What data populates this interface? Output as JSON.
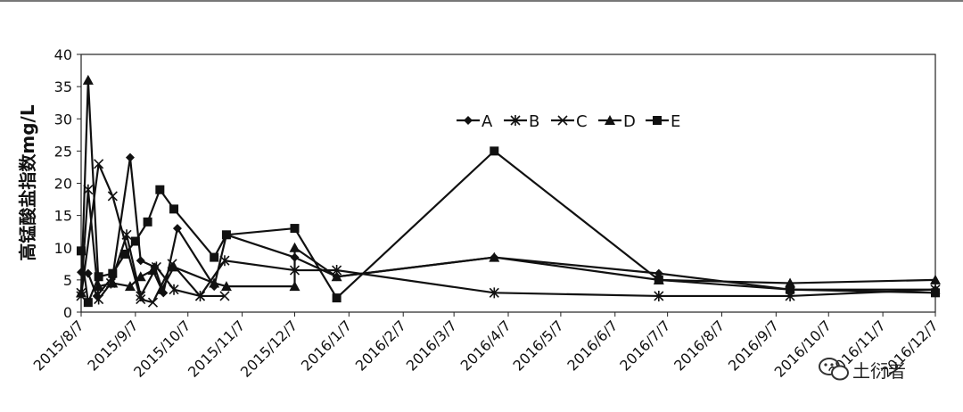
{
  "chart_data": {
    "type": "line",
    "ylabel": "高锰酸盐指数mg/L",
    "xlabel": "",
    "title": "",
    "ylim": [
      0,
      40
    ],
    "yticks": [
      0,
      5,
      10,
      15,
      20,
      25,
      30,
      35,
      40
    ],
    "xlim": [
      "2015-08-07",
      "2016-12-07"
    ],
    "xticks": [
      "2015/8/7",
      "2015/9/7",
      "2015/10/7",
      "2015/11/7",
      "2015/12/7",
      "2016/1/7",
      "2016/2/7",
      "2016/3/7",
      "2016/4/7",
      "2016/5/7",
      "2016/6/7",
      "2016/7/7",
      "2016/8/7",
      "2016/9/7",
      "2016/10/7",
      "2016/11/7",
      "2016/12/7"
    ],
    "grid": false,
    "legend_position": "top-center",
    "series": [
      {
        "name": "A",
        "marker": "diamond",
        "points": [
          [
            "2015-08-07",
            6.2
          ],
          [
            "2015-08-11",
            6.0
          ],
          [
            "2015-08-16",
            2.5
          ],
          [
            "2015-08-25",
            5.5
          ],
          [
            "2015-09-04",
            24.0
          ],
          [
            "2015-09-10",
            8.0
          ],
          [
            "2015-09-18",
            7.0
          ],
          [
            "2015-09-23",
            3.0
          ],
          [
            "2015-10-01",
            13.0
          ],
          [
            "2015-10-22",
            4.0
          ],
          [
            "2015-10-29",
            12.0
          ],
          [
            "2015-12-07",
            8.5
          ],
          [
            "2015-12-31",
            5.5
          ],
          [
            "2016-03-30",
            8.5
          ],
          [
            "2016-07-02",
            6.0
          ],
          [
            "2016-09-15",
            3.5
          ],
          [
            "2016-12-07",
            3.5
          ]
        ]
      },
      {
        "name": "B",
        "marker": "asterisk",
        "points": [
          [
            "2015-08-07",
            3.0
          ],
          [
            "2015-08-11",
            19.0
          ],
          [
            "2015-08-17",
            2.0
          ],
          [
            "2015-08-24",
            4.5
          ],
          [
            "2015-09-02",
            12.0
          ],
          [
            "2015-09-10",
            2.5
          ],
          [
            "2015-09-19",
            7.0
          ],
          [
            "2015-09-29",
            3.5
          ],
          [
            "2015-10-14",
            2.5
          ],
          [
            "2015-10-28",
            8.0
          ],
          [
            "2015-12-07",
            6.5
          ],
          [
            "2015-12-31",
            6.5
          ],
          [
            "2016-03-30",
            3.0
          ],
          [
            "2016-07-02",
            2.5
          ],
          [
            "2016-09-15",
            2.5
          ],
          [
            "2016-12-07",
            3.5
          ]
        ]
      },
      {
        "name": "C",
        "marker": "x",
        "points": [
          [
            "2015-08-07",
            2.5
          ],
          [
            "2015-08-17",
            23.0
          ],
          [
            "2015-08-25",
            18.0
          ],
          [
            "2015-09-10",
            2.0
          ],
          [
            "2015-09-17",
            1.5
          ],
          [
            "2015-09-28",
            7.5
          ],
          [
            "2015-10-14",
            2.5
          ],
          [
            "2015-10-28",
            2.5
          ]
        ]
      },
      {
        "name": "D",
        "marker": "triangle",
        "points": [
          [
            "2015-08-07",
            3.0
          ],
          [
            "2015-08-11",
            36.0
          ],
          [
            "2015-08-17",
            4.0
          ],
          [
            "2015-08-25",
            4.5
          ],
          [
            "2015-09-04",
            4.0
          ],
          [
            "2015-09-10",
            5.5
          ],
          [
            "2015-09-17",
            6.5
          ],
          [
            "2015-09-22",
            3.5
          ],
          [
            "2015-09-29",
            7.0
          ],
          [
            "2015-10-22",
            4.5
          ],
          [
            "2015-10-29",
            4.0
          ],
          [
            "2015-12-07",
            4.0
          ],
          [
            "2015-12-07",
            10.0
          ],
          [
            "2015-12-31",
            5.5
          ],
          [
            "2016-03-30",
            8.5
          ],
          [
            "2016-07-02",
            5.0
          ],
          [
            "2016-09-15",
            4.5
          ],
          [
            "2016-12-07",
            5.0
          ]
        ]
      },
      {
        "name": "E",
        "marker": "square",
        "points": [
          [
            "2015-08-07",
            9.5
          ],
          [
            "2015-08-11",
            1.5
          ],
          [
            "2015-08-17",
            5.5
          ],
          [
            "2015-08-25",
            6.0
          ],
          [
            "2015-09-01",
            9.0
          ],
          [
            "2015-09-07",
            11.0
          ],
          [
            "2015-09-14",
            14.0
          ],
          [
            "2015-09-21",
            19.0
          ],
          [
            "2015-09-29",
            16.0
          ],
          [
            "2015-10-22",
            8.5
          ],
          [
            "2015-10-29",
            12.0
          ],
          [
            "2015-12-07",
            13.0
          ],
          [
            "2015-12-31",
            2.2
          ],
          [
            "2016-03-30",
            25.0
          ],
          [
            "2016-07-02",
            5.0
          ],
          [
            "2016-09-15",
            3.5
          ],
          [
            "2016-12-07",
            3.0
          ]
        ]
      }
    ]
  },
  "watermark": {
    "icon": "wechat-bubbles-icon",
    "text": "土衍者"
  }
}
